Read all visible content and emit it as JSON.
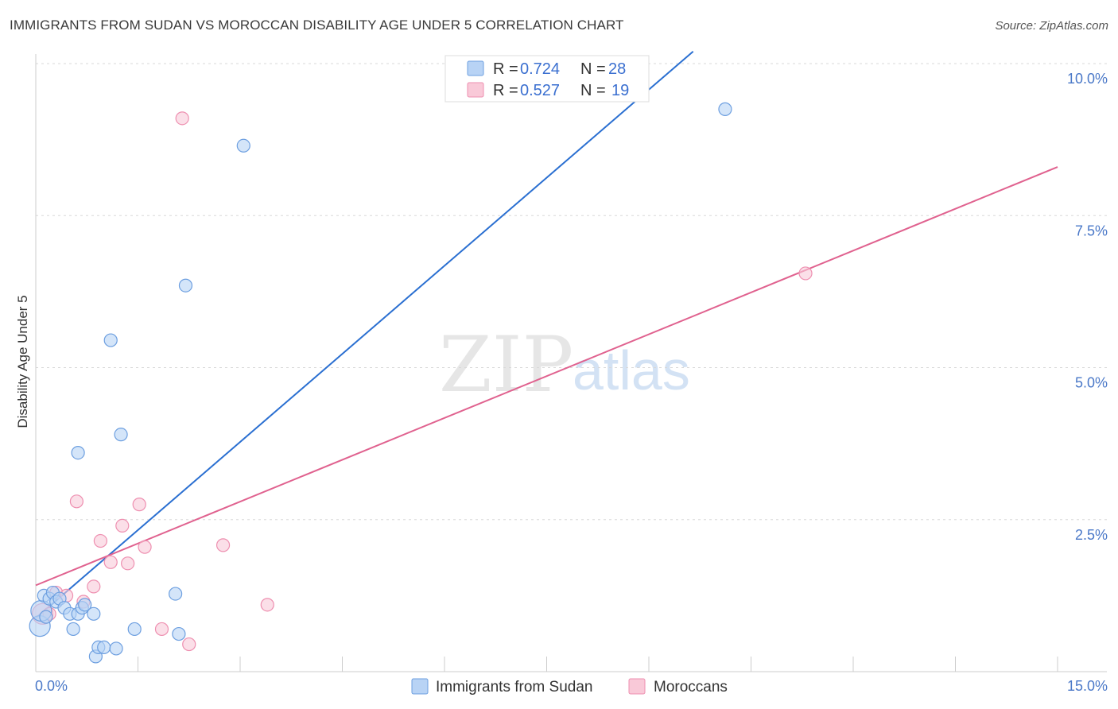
{
  "title": "IMMIGRANTS FROM SUDAN VS MOROCCAN DISABILITY AGE UNDER 5 CORRELATION CHART",
  "source": "Source: ZipAtlas.com",
  "watermark": {
    "zip": "ZIP",
    "atlas": "atlas"
  },
  "colors": {
    "blue_fill": "#b8d3f5",
    "blue_stroke": "#6d9fe0",
    "blue_line": "#2a6fd1",
    "pink_fill": "#f9c9d8",
    "pink_stroke": "#ee8fb0",
    "pink_line": "#e0628f",
    "grid": "#d8d8d8",
    "tick_label": "#4a78c8"
  },
  "legend_top": {
    "rows": [
      {
        "r_label": "R =",
        "r_value": "0.724",
        "n_label": "N =",
        "n_value": "28"
      },
      {
        "r_label": "R =",
        "r_value": "0.527",
        "n_label": "N =",
        "n_value": "19"
      }
    ]
  },
  "legend_bottom": {
    "series1": "Immigrants from Sudan",
    "series2": "Moroccans"
  },
  "chart_data": {
    "type": "scatter",
    "title": "IMMIGRANTS FROM SUDAN VS MOROCCAN DISABILITY AGE UNDER 5 CORRELATION CHART",
    "xlabel": "",
    "ylabel": "Disability Age Under 5",
    "xlim": [
      0,
      15
    ],
    "ylim": [
      0,
      10
    ],
    "x_tick_labels": [
      "0.0%",
      "15.0%"
    ],
    "y_ticks": [
      2.5,
      5.0,
      7.5,
      10.0
    ],
    "y_tick_labels": [
      "2.5%",
      "5.0%",
      "7.5%",
      "10.0%"
    ],
    "grid": true,
    "series": [
      {
        "name": "Immigrants from Sudan",
        "r": 0.724,
        "n": 28,
        "trend": {
          "x": [
            0.0,
            9.65
          ],
          "y": [
            0.88,
            10.2
          ]
        },
        "points": [
          {
            "x": 0.06,
            "y": 0.75,
            "big": true
          },
          {
            "x": 0.08,
            "y": 1.0,
            "big": true
          },
          {
            "x": 0.12,
            "y": 1.25
          },
          {
            "x": 0.2,
            "y": 1.2
          },
          {
            "x": 0.25,
            "y": 1.3
          },
          {
            "x": 0.3,
            "y": 1.15
          },
          {
            "x": 0.35,
            "y": 1.2
          },
          {
            "x": 0.42,
            "y": 1.05
          },
          {
            "x": 0.5,
            "y": 0.95
          },
          {
            "x": 0.55,
            "y": 0.7
          },
          {
            "x": 0.62,
            "y": 0.95
          },
          {
            "x": 0.68,
            "y": 1.05
          },
          {
            "x": 0.72,
            "y": 1.1
          },
          {
            "x": 0.85,
            "y": 0.95
          },
          {
            "x": 0.88,
            "y": 0.25
          },
          {
            "x": 0.92,
            "y": 0.4
          },
          {
            "x": 1.0,
            "y": 0.4
          },
          {
            "x": 1.18,
            "y": 0.38
          },
          {
            "x": 1.1,
            "y": 5.45
          },
          {
            "x": 1.25,
            "y": 3.9
          },
          {
            "x": 0.62,
            "y": 3.6
          },
          {
            "x": 1.45,
            "y": 0.7
          },
          {
            "x": 2.05,
            "y": 1.28
          },
          {
            "x": 2.1,
            "y": 0.62
          },
          {
            "x": 2.2,
            "y": 6.35
          },
          {
            "x": 3.05,
            "y": 8.65
          },
          {
            "x": 10.12,
            "y": 9.25
          },
          {
            "x": 0.15,
            "y": 0.9
          }
        ]
      },
      {
        "name": "Moroccans",
        "r": 0.527,
        "n": 19,
        "trend": {
          "x": [
            0.0,
            15.0
          ],
          "y": [
            1.42,
            8.3
          ]
        },
        "points": [
          {
            "x": 0.1,
            "y": 0.95,
            "big": true
          },
          {
            "x": 0.2,
            "y": 0.95
          },
          {
            "x": 0.3,
            "y": 1.3
          },
          {
            "x": 0.45,
            "y": 1.25
          },
          {
            "x": 0.6,
            "y": 2.8
          },
          {
            "x": 0.7,
            "y": 1.15
          },
          {
            "x": 0.85,
            "y": 1.4
          },
          {
            "x": 0.95,
            "y": 2.15
          },
          {
            "x": 1.1,
            "y": 1.8
          },
          {
            "x": 1.27,
            "y": 2.4
          },
          {
            "x": 1.35,
            "y": 1.78
          },
          {
            "x": 1.52,
            "y": 2.75
          },
          {
            "x": 1.6,
            "y": 2.05
          },
          {
            "x": 1.85,
            "y": 0.7
          },
          {
            "x": 2.15,
            "y": 9.1
          },
          {
            "x": 2.25,
            "y": 0.45
          },
          {
            "x": 2.75,
            "y": 2.08
          },
          {
            "x": 3.4,
            "y": 1.1
          },
          {
            "x": 11.3,
            "y": 6.55
          }
        ]
      }
    ]
  }
}
